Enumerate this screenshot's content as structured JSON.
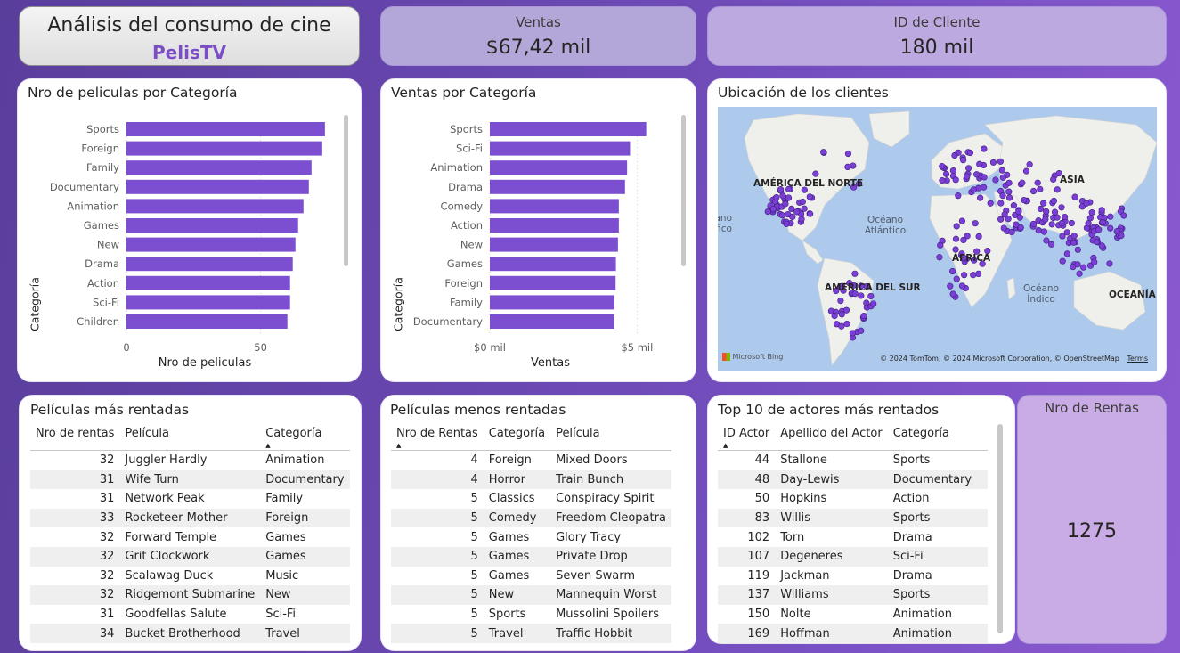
{
  "header": {
    "title": "Análisis del consumo de cine",
    "brand": "PelisTV"
  },
  "kpis": {
    "ventas": {
      "label": "Ventas",
      "value": "$67,42 mil"
    },
    "clientes": {
      "label": "ID de Cliente",
      "value": "180 mil"
    },
    "rentas": {
      "label": "Nro de Rentas",
      "value": "1275"
    }
  },
  "colors": {
    "bar": "#7c4fd0",
    "map_point": "#7b3fd6",
    "accent": "#7b4dc7"
  },
  "chart_films": {
    "title": "Nro de peliculas por Categoría",
    "ylabel": "Categoría",
    "xlabel": "Nro de peliculas",
    "tick_labels": [
      "0",
      "50"
    ]
  },
  "chart_sales": {
    "title": "Ventas por Categoría",
    "ylabel": "Categoría",
    "xlabel": "Ventas",
    "tick_labels": [
      "$0 mil",
      "$5 mil"
    ]
  },
  "chart_data": [
    {
      "type": "bar",
      "orientation": "horizontal",
      "categories": [
        "Sports",
        "Foreign",
        "Family",
        "Documentary",
        "Animation",
        "Games",
        "New",
        "Drama",
        "Action",
        "Sci-Fi",
        "Children"
      ],
      "values": [
        74,
        73,
        69,
        68,
        66,
        64,
        63,
        62,
        61,
        61,
        60
      ],
      "xlim": [
        0,
        85
      ],
      "xticks": [
        0,
        50
      ],
      "grid": true
    },
    {
      "type": "bar",
      "orientation": "horizontal",
      "categories": [
        "Sports",
        "Sci-Fi",
        "Animation",
        "Drama",
        "Comedy",
        "Action",
        "New",
        "Games",
        "Foreign",
        "Family",
        "Documentary"
      ],
      "values": [
        5.31,
        4.76,
        4.66,
        4.59,
        4.38,
        4.38,
        4.35,
        4.28,
        4.27,
        4.23,
        4.22
      ],
      "xlim": [
        0,
        6.5
      ],
      "xticks": [
        0,
        5
      ],
      "grid": true
    }
  ],
  "map": {
    "title": "Ubicación de los clientes",
    "labels": [
      "AMÉRICA DEL NORTE",
      "ASIA",
      "ÁFRICA",
      "AMÉRICA DEL SUR",
      "OCEANÍA",
      "Océano Atlántico",
      "Océano Índico",
      "Océano Pacífico"
    ],
    "copyright": "© 2024 TomTom, © 2024 Microsoft Corporation, © OpenStreetMap",
    "terms": "Terms",
    "logo": "Microsoft Bing"
  },
  "table_top": {
    "title": "Películas más rentadas",
    "columns": [
      "Nro de rentas",
      "Película",
      "Categoría"
    ],
    "rows": [
      [
        "32",
        "Juggler Hardly",
        "Animation"
      ],
      [
        "31",
        "Wife Turn",
        "Documentary"
      ],
      [
        "31",
        "Network Peak",
        "Family"
      ],
      [
        "33",
        "Rocketeer Mother",
        "Foreign"
      ],
      [
        "32",
        "Forward Temple",
        "Games"
      ],
      [
        "32",
        "Grit Clockwork",
        "Games"
      ],
      [
        "32",
        "Scalawag Duck",
        "Music"
      ],
      [
        "32",
        "Ridgemont Submarine",
        "New"
      ],
      [
        "31",
        "Goodfellas Salute",
        "Sci-Fi"
      ],
      [
        "34",
        "Bucket Brotherhood",
        "Travel"
      ]
    ]
  },
  "table_low": {
    "title": "Películas menos rentadas",
    "columns": [
      "Nro de Rentas",
      "Categoría",
      "Película"
    ],
    "rows": [
      [
        "4",
        "Foreign",
        "Mixed Doors"
      ],
      [
        "4",
        "Horror",
        "Train Bunch"
      ],
      [
        "5",
        "Classics",
        "Conspiracy Spirit"
      ],
      [
        "5",
        "Comedy",
        "Freedom Cleopatra"
      ],
      [
        "5",
        "Games",
        "Glory Tracy"
      ],
      [
        "5",
        "Games",
        "Private Drop"
      ],
      [
        "5",
        "Games",
        "Seven Swarm"
      ],
      [
        "5",
        "New",
        "Mannequin Worst"
      ],
      [
        "5",
        "Sports",
        "Mussolini Spoilers"
      ],
      [
        "5",
        "Travel",
        "Traffic Hobbit"
      ]
    ]
  },
  "table_actors": {
    "title": "Top 10 de actores más rentados",
    "columns": [
      "ID Actor",
      "Apellido del Actor",
      "Categoría"
    ],
    "rows": [
      [
        "44",
        "Stallone",
        "Sports"
      ],
      [
        "48",
        "Day-Lewis",
        "Documentary"
      ],
      [
        "50",
        "Hopkins",
        "Action"
      ],
      [
        "83",
        "Willis",
        "Sports"
      ],
      [
        "102",
        "Torn",
        "Drama"
      ],
      [
        "107",
        "Degeneres",
        "Sci-Fi"
      ],
      [
        "119",
        "Jackman",
        "Drama"
      ],
      [
        "137",
        "Williams",
        "Sports"
      ],
      [
        "150",
        "Nolte",
        "Animation"
      ],
      [
        "169",
        "Hoffman",
        "Animation"
      ]
    ]
  }
}
